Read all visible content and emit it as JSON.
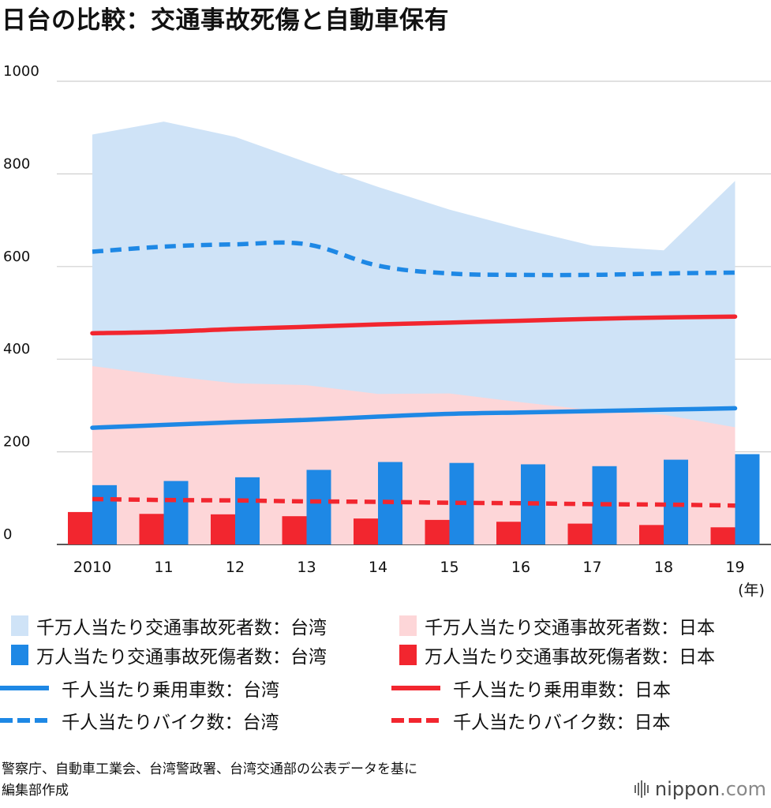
{
  "title": "日台の比較：交通事故死傷と自動車保有",
  "chart_data": {
    "type": "bar",
    "categories": [
      "2010",
      "11",
      "12",
      "13",
      "14",
      "15",
      "16",
      "17",
      "18",
      "19"
    ],
    "x_unit": "(年)",
    "ylim": [
      0,
      1000
    ],
    "yticks": [
      0,
      200,
      400,
      600,
      800,
      1000
    ],
    "grid": true,
    "legend_position": "bottom",
    "series": [
      {
        "name": "千万人当たり交通事故死者数：台湾",
        "type": "area",
        "color": "#cfe3f7",
        "values": [
          885,
          913,
          880,
          825,
          772,
          723,
          682,
          645,
          635,
          785
        ]
      },
      {
        "name": "千万人当たり交通事故死者数：日本",
        "type": "area",
        "color": "#fdd6d8",
        "values": [
          385,
          365,
          348,
          344,
          325,
          326,
          307,
          290,
          280,
          253
        ]
      },
      {
        "name": "万人当たり交通事故死傷者数：台湾",
        "type": "bar",
        "color": "#1e88e5",
        "values": [
          128,
          137,
          145,
          161,
          178,
          176,
          173,
          169,
          183,
          195
        ]
      },
      {
        "name": "万人当たり交通事故死傷者数：日本",
        "type": "bar",
        "color": "#f2262f",
        "values": [
          70,
          66,
          65,
          61,
          56,
          53,
          49,
          45,
          42,
          37
        ]
      },
      {
        "name": "千人当たり乗用車数：台湾",
        "type": "line",
        "color": "#1e88e5",
        "values": [
          252,
          258,
          264,
          269,
          276,
          282,
          285,
          288,
          291,
          294
        ]
      },
      {
        "name": "千人当たり乗用車数：日本",
        "type": "line",
        "color": "#f2262f",
        "values": [
          456,
          459,
          465,
          470,
          475,
          479,
          483,
          487,
          490,
          492
        ]
      },
      {
        "name": "千人当たりバイク数：台湾",
        "type": "dashed-line",
        "color": "#1e88e5",
        "values": [
          632,
          643,
          648,
          648,
          602,
          585,
          582,
          582,
          585,
          587
        ]
      },
      {
        "name": "千人当たりバイク数：日本",
        "type": "dashed-line",
        "color": "#f2262f",
        "values": [
          98,
          96,
          95,
          93,
          92,
          90,
          89,
          87,
          86,
          84
        ]
      }
    ]
  },
  "legend": [
    "千万人当たり交通事故死者数：台湾",
    "千万人当たり交通事故死者数：日本",
    "万人当たり交通事故死傷者数：台湾",
    "万人当たり交通事故死傷者数：日本",
    "千人当たり乗用車数：台湾",
    "千人当たり乗用車数：日本",
    "千人当たりバイク数：台湾",
    "千人当たりバイク数：日本"
  ],
  "source_line1": "警察庁、自動車工業会、台湾警政署、台湾交通部の公表データを基に",
  "source_line2": "編集部作成",
  "brand_name": "nippon",
  "brand_suffix": ".com"
}
